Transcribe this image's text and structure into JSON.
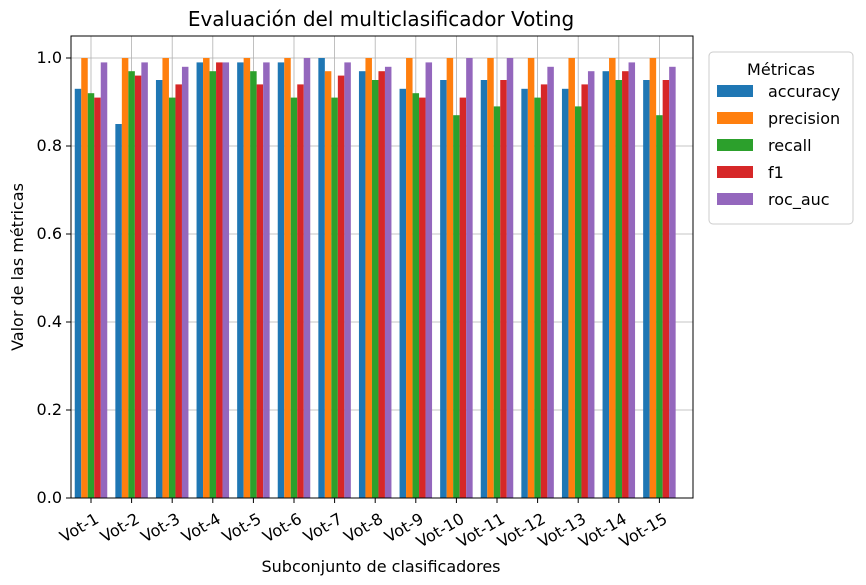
{
  "chart_data": {
    "type": "bar",
    "title": "Evaluación del multiclasificador Voting",
    "xlabel": "Subconjunto de clasificadores",
    "ylabel": "Valor de las métricas",
    "ylim": [
      0,
      1.05
    ],
    "yticks": [
      "0.0",
      "0.2",
      "0.4",
      "0.6",
      "0.8",
      "1.0"
    ],
    "grid": true,
    "legend_title": "Métricas",
    "legend_position": "outside-right-top",
    "categories": [
      "Vot-1",
      "Vot-2",
      "Vot-3",
      "Vot-4",
      "Vot-5",
      "Vot-6",
      "Vot-7",
      "Vot-8",
      "Vot-9",
      "Vot-10",
      "Vot-11",
      "Vot-12",
      "Vot-13",
      "Vot-14",
      "Vot-15"
    ],
    "series": [
      {
        "name": "accuracy",
        "color": "#1f77b4",
        "values": [
          0.93,
          0.85,
          0.95,
          0.99,
          0.99,
          0.99,
          1.0,
          0.97,
          0.93,
          0.95,
          0.95,
          0.93,
          0.93,
          0.97,
          0.95
        ]
      },
      {
        "name": "precision",
        "color": "#ff7f0e",
        "values": [
          1.0,
          1.0,
          1.0,
          1.0,
          1.0,
          1.0,
          0.97,
          1.0,
          1.0,
          1.0,
          1.0,
          1.0,
          1.0,
          1.0,
          1.0
        ]
      },
      {
        "name": "recall",
        "color": "#2ca02c",
        "values": [
          0.92,
          0.97,
          0.91,
          0.97,
          0.97,
          0.91,
          0.91,
          0.95,
          0.92,
          0.87,
          0.89,
          0.91,
          0.89,
          0.95,
          0.87
        ]
      },
      {
        "name": "f1",
        "color": "#d62728",
        "values": [
          0.91,
          0.96,
          0.94,
          0.99,
          0.94,
          0.94,
          0.96,
          0.97,
          0.91,
          0.91,
          0.95,
          0.94,
          0.94,
          0.97,
          0.95
        ]
      },
      {
        "name": "roc_auc",
        "color": "#9467bd",
        "values": [
          0.99,
          0.99,
          0.98,
          0.99,
          0.99,
          1.0,
          0.99,
          0.98,
          0.99,
          1.0,
          1.0,
          0.98,
          0.97,
          0.99,
          0.98
        ]
      }
    ]
  }
}
